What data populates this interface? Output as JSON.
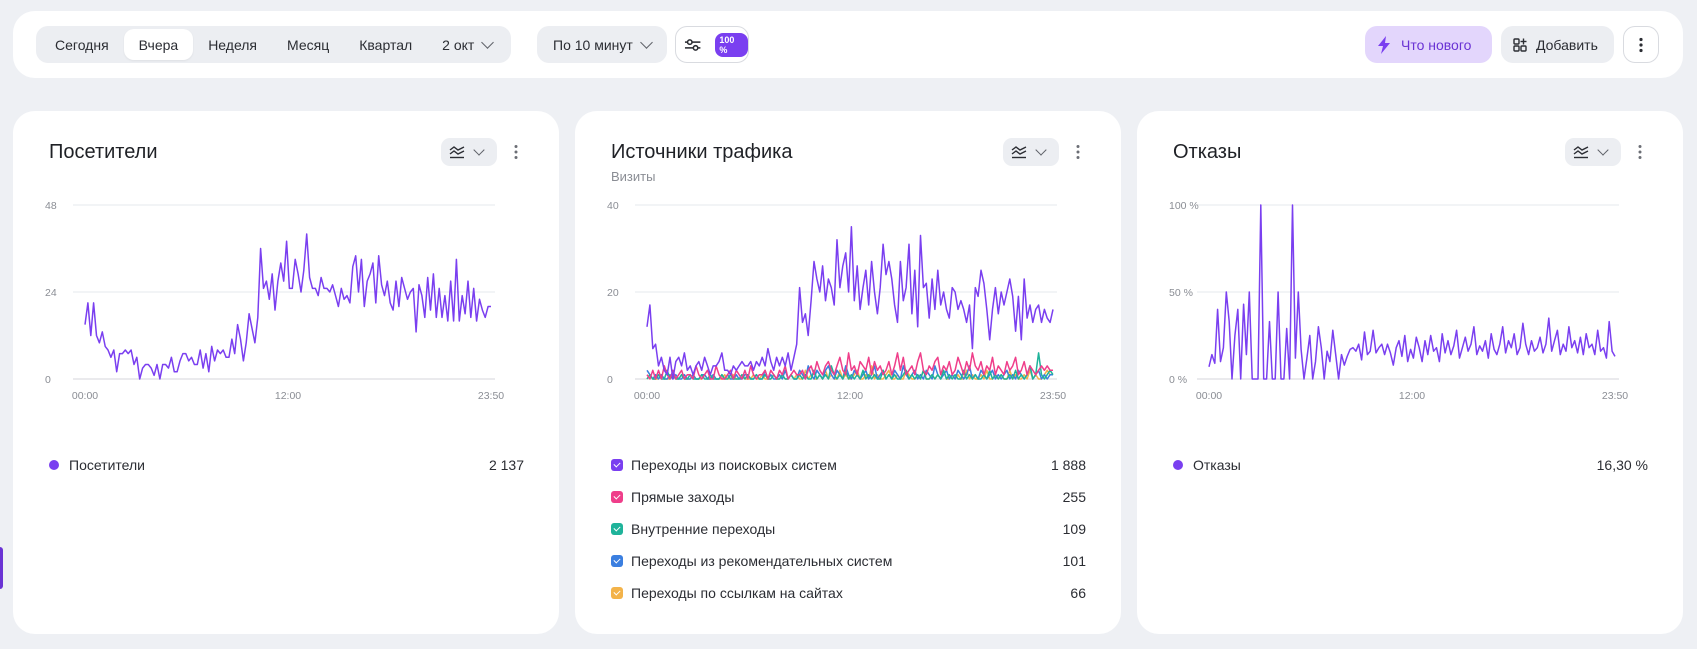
{
  "toolbar": {
    "periods": [
      "Сегодня",
      "Вчера",
      "Неделя",
      "Месяц",
      "Квартал"
    ],
    "active_period": "Вчера",
    "date": "2 окт",
    "interval": "По 10 минут",
    "sampling": "100 %",
    "whats_new": "Что нового",
    "add": "Добавить"
  },
  "colors": {
    "accent": "#7a3ff0",
    "pink": "#ef3e8a",
    "teal": "#1fb39a",
    "blue": "#3b7fe0",
    "orange": "#f3b34a"
  },
  "icons": [
    "sliders-icon",
    "lightning-icon",
    "add-widget-icon",
    "more-vertical-icon",
    "chevron-down-icon",
    "chart-type-icon"
  ],
  "cards": {
    "visitors": {
      "title": "Посетители",
      "legend": [
        {
          "label": "Посетители",
          "value": "2 137"
        }
      ]
    },
    "traffic": {
      "title": "Источники трафика",
      "subtitle": "Визиты",
      "legend": [
        {
          "label": "Переходы из поисковых систем",
          "value": "1 888"
        },
        {
          "label": "Прямые заходы",
          "value": "255"
        },
        {
          "label": "Внутренние переходы",
          "value": "109"
        },
        {
          "label": "Переходы из рекомендательных систем",
          "value": "101"
        },
        {
          "label": "Переходы по ссылкам на сайтах",
          "value": "66"
        }
      ]
    },
    "bounce": {
      "title": "Отказы",
      "legend": [
        {
          "label": "Отказы",
          "value": "16,30 %"
        }
      ]
    }
  },
  "chart_data": [
    {
      "type": "line",
      "title": "Посетители",
      "x_ticks": [
        "00:00",
        "12:00",
        "23:50"
      ],
      "y_ticks": [
        "0",
        "24",
        "48"
      ],
      "ylim": [
        0,
        48
      ],
      "series": [
        {
          "name": "Посетители",
          "color": "#7a3ff0",
          "values": [
            15,
            21,
            12,
            21,
            12,
            10,
            13,
            9,
            8,
            6,
            8,
            2,
            7,
            7,
            8,
            7,
            8,
            4,
            6,
            0,
            3,
            4,
            4,
            3,
            1,
            4,
            0,
            4,
            4,
            3,
            6,
            2,
            2,
            5,
            7,
            7,
            5,
            6,
            4,
            4,
            8,
            3,
            7,
            2,
            9,
            5,
            8,
            7,
            8,
            6,
            6,
            11,
            7,
            15,
            11,
            5,
            10,
            18,
            14,
            10,
            17,
            36,
            25,
            27,
            22,
            29,
            19,
            27,
            32,
            27,
            38,
            25,
            25,
            33,
            29,
            24,
            30,
            40,
            28,
            25,
            25,
            23,
            28,
            25,
            25,
            24,
            26,
            23,
            20,
            25,
            22,
            23,
            21,
            31,
            34,
            24,
            33,
            20,
            27,
            29,
            32,
            21,
            34,
            26,
            23,
            27,
            21,
            19,
            27,
            20,
            28,
            25,
            22,
            24,
            25,
            13,
            26,
            23,
            17,
            28,
            19,
            29,
            17,
            25,
            17,
            23,
            16,
            27,
            16,
            33,
            16,
            23,
            18,
            27,
            17,
            25,
            16,
            22,
            19,
            17,
            20,
            20
          ]
        }
      ]
    },
    {
      "type": "line",
      "title": "Источники трафика",
      "x_ticks": [
        "00:00",
        "12:00",
        "23:50"
      ],
      "y_ticks": [
        "0",
        "20",
        "40"
      ],
      "ylim": [
        0,
        40
      ],
      "series": [
        {
          "name": "Переходы из поисковых систем",
          "color": "#7a3ff0",
          "values": [
            12,
            17,
            7,
            8,
            3,
            5,
            2,
            1,
            5,
            0,
            4,
            5,
            3,
            6,
            2,
            3,
            1,
            3,
            4,
            2,
            5,
            3,
            1,
            3,
            3,
            4,
            6,
            2,
            2,
            1,
            3,
            2,
            3,
            4,
            3,
            3,
            4,
            2,
            4,
            3,
            5,
            3,
            7,
            4,
            2,
            5,
            3,
            5,
            3,
            6,
            2,
            5,
            8,
            21,
            13,
            15,
            10,
            18,
            27,
            23,
            20,
            26,
            18,
            23,
            21,
            17,
            32,
            21,
            26,
            29,
            20,
            35,
            18,
            26,
            16,
            21,
            25,
            17,
            27,
            20,
            15,
            21,
            31,
            24,
            27,
            23,
            17,
            13,
            27,
            18,
            21,
            31,
            15,
            25,
            12,
            33,
            21,
            22,
            14,
            23,
            16,
            25,
            17,
            20,
            16,
            14,
            21,
            20,
            16,
            18,
            16,
            13,
            17,
            7,
            21,
            19,
            25,
            22,
            16,
            9,
            16,
            21,
            15,
            20,
            17,
            20,
            23,
            19,
            11,
            19,
            9,
            23,
            14,
            17,
            13,
            16,
            17,
            13,
            16,
            14,
            13,
            16
          ]
        },
        {
          "name": "Прямые заходы",
          "color": "#ef3e8a",
          "values": [
            1,
            0,
            2,
            0,
            2,
            0,
            3,
            1,
            0,
            2,
            0,
            1,
            2,
            0,
            1,
            1,
            0,
            3,
            1,
            0,
            1,
            2,
            0,
            0,
            3,
            1,
            0,
            0,
            1,
            2,
            0,
            2,
            1,
            0,
            2,
            0,
            3,
            1,
            0,
            1,
            1,
            2,
            0,
            2,
            1,
            0,
            2,
            1,
            3,
            0,
            1,
            2,
            1,
            1,
            2,
            0,
            2,
            3,
            1,
            4,
            2,
            1,
            3,
            4,
            2,
            1,
            3,
            5,
            2,
            1,
            6,
            2,
            3,
            1,
            4,
            3,
            2,
            5,
            1,
            4,
            2,
            3,
            1,
            2,
            4,
            1,
            3,
            6,
            2,
            5,
            1,
            2,
            3,
            1,
            4,
            6,
            2,
            1,
            3,
            2,
            4,
            5,
            1,
            3,
            2,
            4,
            1,
            2,
            5,
            3,
            1,
            4,
            2,
            6,
            3,
            2,
            4,
            1,
            3,
            2,
            5,
            1,
            3,
            2,
            1,
            4,
            2,
            3,
            5,
            1,
            2,
            4,
            1,
            3,
            2,
            1,
            2,
            3,
            2,
            3,
            2,
            2
          ]
        },
        {
          "name": "Внутренние переходы",
          "color": "#1fb39a",
          "values": [
            0,
            1,
            0,
            0,
            1,
            0,
            0,
            2,
            0,
            1,
            0,
            0,
            1,
            0,
            0,
            1,
            0,
            0,
            0,
            1,
            0,
            0,
            1,
            0,
            0,
            0,
            1,
            0,
            0,
            1,
            0,
            0,
            0,
            1,
            0,
            1,
            0,
            0,
            1,
            0,
            0,
            1,
            0,
            0,
            1,
            0,
            0,
            1,
            0,
            0,
            1,
            0,
            0,
            1,
            0,
            1,
            0,
            0,
            2,
            0,
            1,
            0,
            1,
            0,
            3,
            1,
            0,
            1,
            0,
            2,
            0,
            1,
            0,
            1,
            0,
            2,
            0,
            1,
            0,
            1,
            0,
            0,
            2,
            0,
            1,
            0,
            1,
            0,
            0,
            1,
            2,
            0,
            1,
            0,
            1,
            0,
            2,
            0,
            0,
            1,
            0,
            1,
            0,
            2,
            0,
            1,
            0,
            1,
            0,
            0,
            2,
            0,
            1,
            0,
            1,
            0,
            0,
            1,
            0,
            2,
            0,
            1,
            0,
            1,
            0,
            0,
            1,
            0,
            2,
            0,
            1,
            0,
            1,
            3,
            0,
            1,
            6,
            1,
            0,
            1,
            2,
            1
          ]
        },
        {
          "name": "Переходы из рекомендательных систем",
          "color": "#3b7fe0",
          "values": [
            2,
            1,
            0,
            1,
            0,
            1,
            0,
            0,
            1,
            0,
            1,
            0,
            0,
            1,
            0,
            0,
            1,
            0,
            0,
            1,
            1,
            0,
            0,
            1,
            0,
            0,
            1,
            0,
            1,
            0,
            0,
            1,
            0,
            0,
            1,
            1,
            0,
            0,
            1,
            0,
            0,
            2,
            0,
            1,
            0,
            0,
            1,
            0,
            2,
            0,
            1,
            0,
            0,
            2,
            1,
            0,
            3,
            1,
            0,
            2,
            1,
            0,
            2,
            3,
            1,
            0,
            2,
            1,
            0,
            3,
            1,
            0,
            2,
            1,
            0,
            1,
            2,
            0,
            1,
            3,
            0,
            1,
            2,
            0,
            1,
            0,
            2,
            1,
            0,
            3,
            1,
            0,
            1,
            2,
            0,
            1,
            0,
            2,
            1,
            0,
            3,
            1,
            0,
            1,
            2,
            0,
            1,
            0,
            2,
            1,
            0,
            1,
            3,
            0,
            1,
            0,
            2,
            1,
            0,
            1,
            2,
            0,
            1,
            0,
            1,
            2,
            0,
            1,
            0,
            2,
            1,
            0,
            1,
            3,
            0,
            1,
            2,
            0,
            1,
            0,
            1,
            1
          ]
        },
        {
          "name": "Переходы по ссылкам на сайтах",
          "color": "#f3b34a",
          "values": [
            0,
            1,
            0,
            0,
            0,
            1,
            0,
            0,
            0,
            1,
            0,
            0,
            1,
            0,
            0,
            0,
            1,
            0,
            0,
            0,
            1,
            0,
            0,
            1,
            0,
            0,
            0,
            1,
            0,
            0,
            1,
            0,
            0,
            1,
            0,
            0,
            0,
            1,
            0,
            0,
            1,
            0,
            0,
            0,
            1,
            0,
            0,
            1,
            0,
            0,
            1,
            0,
            1,
            0,
            0,
            2,
            0,
            1,
            0,
            0,
            1,
            0,
            2,
            0,
            1,
            0,
            0,
            2,
            0,
            1,
            0,
            0,
            1,
            2,
            0,
            0,
            1,
            0,
            3,
            0,
            1,
            0,
            0,
            1,
            2,
            0,
            0,
            1,
            0,
            0,
            2,
            1,
            0,
            0,
            1,
            0,
            2,
            0,
            0,
            1,
            0,
            1,
            0,
            2,
            0,
            0,
            1,
            0,
            1,
            0,
            0,
            2,
            0,
            1,
            0,
            0,
            1,
            0,
            2,
            0,
            0,
            1,
            0,
            1,
            0,
            0,
            2,
            0,
            1,
            0,
            0,
            1,
            0,
            2,
            0,
            1,
            0,
            0,
            1,
            2,
            1,
            1
          ]
        }
      ]
    },
    {
      "type": "line",
      "title": "Отказы",
      "x_ticks": [
        "00:00",
        "12:00",
        "23:50"
      ],
      "y_ticks": [
        "0 %",
        "50 %",
        "100 %"
      ],
      "ylim": [
        0,
        100
      ],
      "series": [
        {
          "name": "Отказы",
          "color": "#7a3ff0",
          "values": [
            7,
            14,
            9,
            40,
            10,
            18,
            50,
            33,
            0,
            25,
            40,
            0,
            43,
            14,
            50,
            0,
            0,
            0,
            100,
            0,
            0,
            33,
            0,
            0,
            50,
            0,
            0,
            29,
            0,
            100,
            12,
            50,
            17,
            0,
            12,
            25,
            0,
            10,
            30,
            18,
            0,
            16,
            10,
            28,
            14,
            0,
            14,
            8,
            13,
            17,
            18,
            16,
            20,
            11,
            27,
            14,
            16,
            28,
            15,
            18,
            20,
            14,
            20,
            15,
            8,
            18,
            22,
            13,
            25,
            10,
            17,
            12,
            24,
            18,
            10,
            22,
            14,
            25,
            16,
            18,
            10,
            26,
            15,
            22,
            14,
            19,
            28,
            12,
            18,
            24,
            16,
            20,
            30,
            14,
            19,
            16,
            22,
            12,
            26,
            17,
            14,
            20,
            30,
            15,
            22,
            18,
            26,
            14,
            18,
            32,
            20,
            14,
            22,
            16,
            18,
            24,
            15,
            20,
            35,
            16,
            22,
            28,
            14,
            20,
            16,
            30,
            18,
            22,
            15,
            24,
            14,
            26,
            18,
            20,
            14,
            28,
            16,
            18,
            12,
            33,
            16,
            13
          ]
        }
      ]
    }
  ]
}
